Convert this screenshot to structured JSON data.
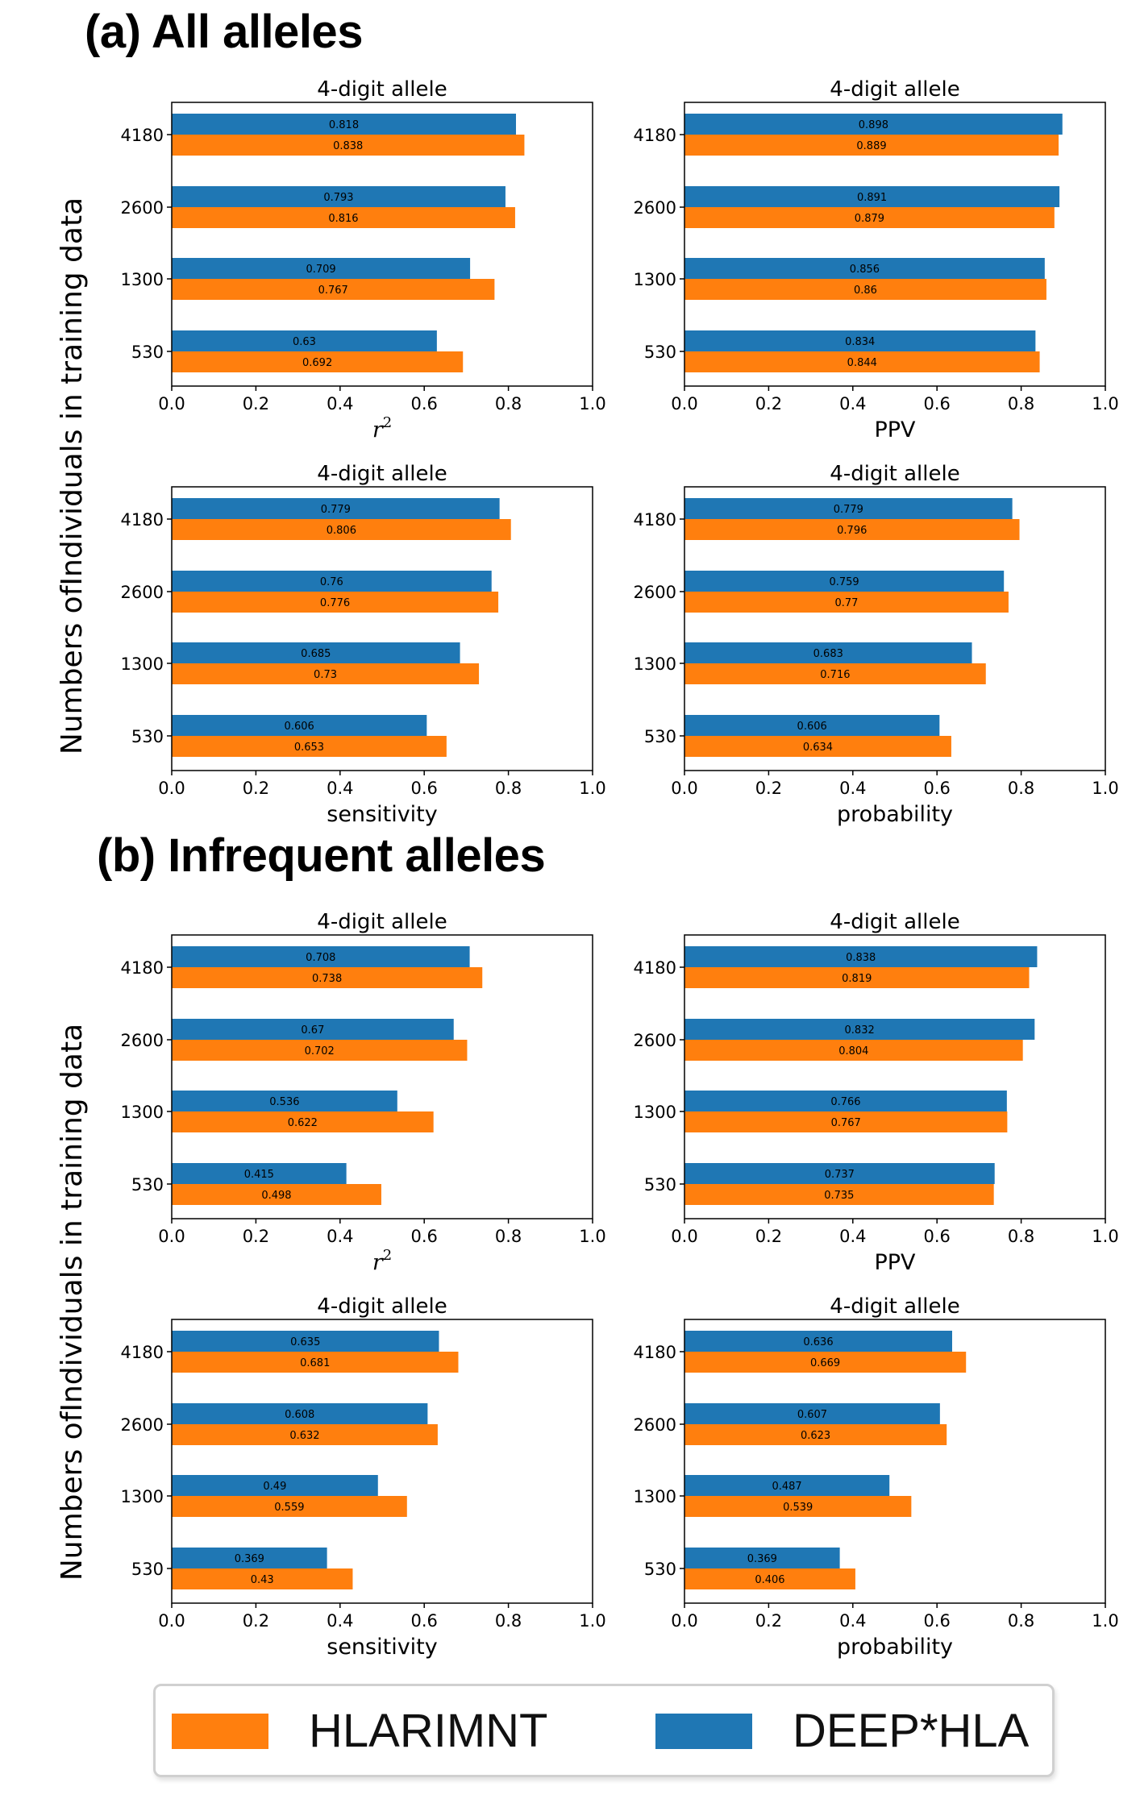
{
  "sections": [
    {
      "title": "(a) All alleles",
      "ylabel": "Numbers ofIndividuals in training data"
    },
    {
      "title": "(b) Infrequent alleles",
      "ylabel": "Numbers ofIndividuals in training data"
    }
  ],
  "legend": {
    "items": [
      {
        "label": "HLARIMNT",
        "color": "#ff7f0e"
      },
      {
        "label": "DEEP*HLA",
        "color": "#1f77b4"
      }
    ]
  },
  "chart_data": [
    {
      "type": "bar",
      "orientation": "horizontal",
      "section": "(a) All alleles",
      "title": "4-digit allele",
      "xlabel": "r²",
      "xlim": [
        0,
        1.0
      ],
      "xticks": [
        "0.0",
        "0.2",
        "0.4",
        "0.6",
        "0.8",
        "1.0"
      ],
      "categories": [
        "4180",
        "2600",
        "1300",
        "530"
      ],
      "series": [
        {
          "name": "DEEP*HLA",
          "color": "#1f77b4",
          "values": [
            0.818,
            0.793,
            0.709,
            0.63
          ]
        },
        {
          "name": "HLARIMNT",
          "color": "#ff7f0e",
          "values": [
            0.838,
            0.816,
            0.767,
            0.692
          ]
        }
      ]
    },
    {
      "type": "bar",
      "orientation": "horizontal",
      "section": "(a) All alleles",
      "title": "4-digit allele",
      "xlabel": "PPV",
      "xlim": [
        0,
        1.0
      ],
      "xticks": [
        "0.0",
        "0.2",
        "0.4",
        "0.6",
        "0.8",
        "1.0"
      ],
      "categories": [
        "4180",
        "2600",
        "1300",
        "530"
      ],
      "series": [
        {
          "name": "DEEP*HLA",
          "color": "#1f77b4",
          "values": [
            0.898,
            0.891,
            0.856,
            0.834
          ]
        },
        {
          "name": "HLARIMNT",
          "color": "#ff7f0e",
          "values": [
            0.889,
            0.879,
            0.86,
            0.844
          ]
        }
      ]
    },
    {
      "type": "bar",
      "orientation": "horizontal",
      "section": "(a) All alleles",
      "title": "4-digit allele",
      "xlabel": "sensitivity",
      "xlim": [
        0,
        1.0
      ],
      "xticks": [
        "0.0",
        "0.2",
        "0.4",
        "0.6",
        "0.8",
        "1.0"
      ],
      "categories": [
        "4180",
        "2600",
        "1300",
        "530"
      ],
      "series": [
        {
          "name": "DEEP*HLA",
          "color": "#1f77b4",
          "values": [
            0.779,
            0.76,
            0.685,
            0.606
          ]
        },
        {
          "name": "HLARIMNT",
          "color": "#ff7f0e",
          "values": [
            0.806,
            0.776,
            0.73,
            0.653
          ]
        }
      ]
    },
    {
      "type": "bar",
      "orientation": "horizontal",
      "section": "(a) All alleles",
      "title": "4-digit allele",
      "xlabel": "probability",
      "xlim": [
        0,
        1.0
      ],
      "xticks": [
        "0.0",
        "0.2",
        "0.4",
        "0.6",
        "0.8",
        "1.0"
      ],
      "categories": [
        "4180",
        "2600",
        "1300",
        "530"
      ],
      "series": [
        {
          "name": "DEEP*HLA",
          "color": "#1f77b4",
          "values": [
            0.779,
            0.759,
            0.683,
            0.606
          ]
        },
        {
          "name": "HLARIMNT",
          "color": "#ff7f0e",
          "values": [
            0.796,
            0.77,
            0.716,
            0.634
          ]
        }
      ]
    },
    {
      "type": "bar",
      "orientation": "horizontal",
      "section": "(b) Infrequent alleles",
      "title": "4-digit allele",
      "xlabel": "r²",
      "xlim": [
        0,
        1.0
      ],
      "xticks": [
        "0.0",
        "0.2",
        "0.4",
        "0.6",
        "0.8",
        "1.0"
      ],
      "categories": [
        "4180",
        "2600",
        "1300",
        "530"
      ],
      "series": [
        {
          "name": "DEEP*HLA",
          "color": "#1f77b4",
          "values": [
            0.708,
            0.67,
            0.536,
            0.415
          ]
        },
        {
          "name": "HLARIMNT",
          "color": "#ff7f0e",
          "values": [
            0.738,
            0.702,
            0.622,
            0.498
          ]
        }
      ]
    },
    {
      "type": "bar",
      "orientation": "horizontal",
      "section": "(b) Infrequent alleles",
      "title": "4-digit allele",
      "xlabel": "PPV",
      "xlim": [
        0,
        1.0
      ],
      "xticks": [
        "0.0",
        "0.2",
        "0.4",
        "0.6",
        "0.8",
        "1.0"
      ],
      "categories": [
        "4180",
        "2600",
        "1300",
        "530"
      ],
      "series": [
        {
          "name": "DEEP*HLA",
          "color": "#1f77b4",
          "values": [
            0.838,
            0.832,
            0.766,
            0.737
          ]
        },
        {
          "name": "HLARIMNT",
          "color": "#ff7f0e",
          "values": [
            0.819,
            0.804,
            0.767,
            0.735
          ]
        }
      ]
    },
    {
      "type": "bar",
      "orientation": "horizontal",
      "section": "(b) Infrequent alleles",
      "title": "4-digit allele",
      "xlabel": "sensitivity",
      "xlim": [
        0,
        1.0
      ],
      "xticks": [
        "0.0",
        "0.2",
        "0.4",
        "0.6",
        "0.8",
        "1.0"
      ],
      "categories": [
        "4180",
        "2600",
        "1300",
        "530"
      ],
      "series": [
        {
          "name": "DEEP*HLA",
          "color": "#1f77b4",
          "values": [
            0.635,
            0.608,
            0.49,
            0.369
          ]
        },
        {
          "name": "HLARIMNT",
          "color": "#ff7f0e",
          "values": [
            0.681,
            0.632,
            0.559,
            0.43
          ]
        }
      ]
    },
    {
      "type": "bar",
      "orientation": "horizontal",
      "section": "(b) Infrequent alleles",
      "title": "4-digit allele",
      "xlabel": "probability",
      "xlim": [
        0,
        1.0
      ],
      "xticks": [
        "0.0",
        "0.2",
        "0.4",
        "0.6",
        "0.8",
        "1.0"
      ],
      "categories": [
        "4180",
        "2600",
        "1300",
        "530"
      ],
      "series": [
        {
          "name": "DEEP*HLA",
          "color": "#1f77b4",
          "values": [
            0.636,
            0.607,
            0.487,
            0.369
          ]
        },
        {
          "name": "HLARIMNT",
          "color": "#ff7f0e",
          "values": [
            0.669,
            0.623,
            0.539,
            0.406
          ]
        }
      ]
    }
  ]
}
